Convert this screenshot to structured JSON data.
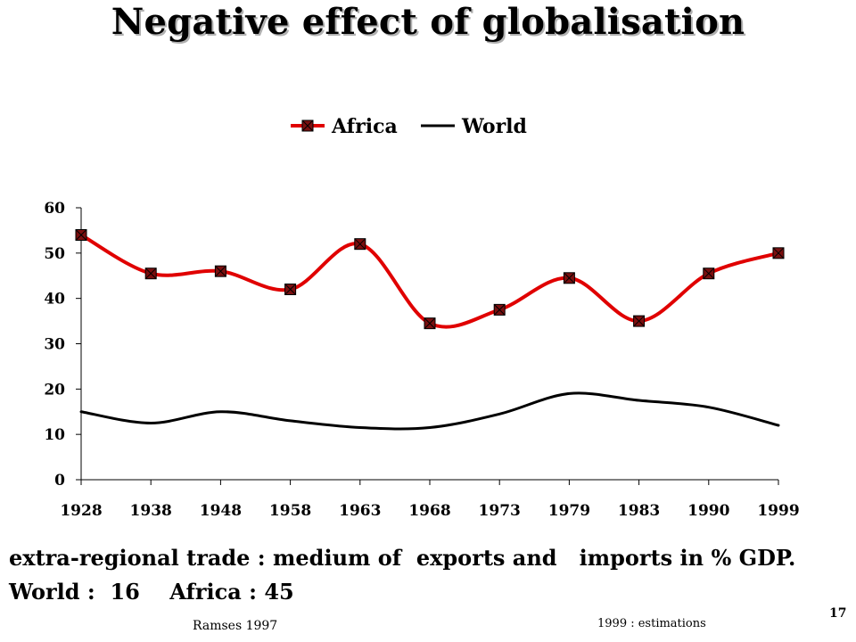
{
  "slide": {
    "title": "Negative effect of  globalisation",
    "caption_line1": "extra-regional trade : medium of  exports and   imports in % GDP.",
    "caption_line2": "World :  16    Africa : 45",
    "source": "Ramses 1997",
    "note": "1999 : estimations",
    "page_number": "17"
  },
  "colors": {
    "africa": "#e00000",
    "world": "#000000",
    "marker_fill": "#7a0f0f"
  },
  "chart_data": {
    "type": "line",
    "categories": [
      "1928",
      "1938",
      "1948",
      "1958",
      "1963",
      "1968",
      "1973",
      "1979",
      "1983",
      "1990",
      "1999"
    ],
    "ylim": [
      0,
      60
    ],
    "yticks": [
      0,
      10,
      20,
      30,
      40,
      50,
      60
    ],
    "legend": "top-center",
    "grid": false,
    "series": [
      {
        "name": "Africa",
        "values": [
          54,
          45.5,
          46,
          42,
          52,
          34.5,
          37.5,
          44.5,
          35,
          45.5,
          50
        ],
        "marker": "square-x"
      },
      {
        "name": "World",
        "values": [
          15,
          12.5,
          15,
          13,
          11.5,
          11.5,
          14.5,
          19,
          17.5,
          16,
          12
        ],
        "marker": "none"
      }
    ]
  }
}
